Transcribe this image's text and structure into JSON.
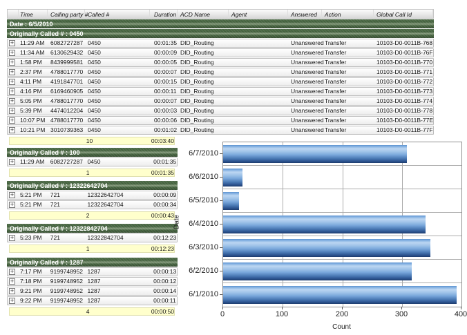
{
  "report": {
    "expander_glyph": "+",
    "date_band": "Date : 6/5/2010",
    "columns": [
      {
        "key": "expand",
        "label": ""
      },
      {
        "key": "time",
        "label": "Time"
      },
      {
        "key": "calling",
        "label": "Calling party #"
      },
      {
        "key": "called",
        "label": "Called #"
      },
      {
        "key": "duration",
        "label": "Duration"
      },
      {
        "key": "acd",
        "label": "ACD Name"
      },
      {
        "key": "agent",
        "label": "Agent"
      },
      {
        "key": "answered",
        "label": "Answered"
      },
      {
        "key": "action",
        "label": "Action"
      },
      {
        "key": "global",
        "label": "Global Call Id"
      }
    ],
    "groups": [
      {
        "band": "Originally Called # : 0450",
        "rows": [
          [
            "11:29 AM",
            "6082727287",
            "0450",
            "00:01:35",
            "DID_Routing",
            "",
            "Unanswered",
            "Transfer",
            "10103-D0-0011B-768"
          ],
          [
            "11:34 AM",
            "6130629432",
            "0450",
            "00:00:09",
            "DID_Routing",
            "",
            "Unanswered",
            "Transfer",
            "10103-D0-0011B-76F"
          ],
          [
            "1:58 PM",
            "8439999581",
            "0450",
            "00:00:05",
            "DID_Routing",
            "",
            "Unanswered",
            "Transfer",
            "10103-D0-0011B-770"
          ],
          [
            "2:37 PM",
            "4788017770",
            "0450",
            "00:00:07",
            "DID_Routing",
            "",
            "Unanswered",
            "Transfer",
            "10103-D0-0011B-771"
          ],
          [
            "4:11 PM",
            "4191847701",
            "0450",
            "00:00:15",
            "DID_Routing",
            "",
            "Unanswered",
            "Transfer",
            "10103-D0-0011B-772"
          ],
          [
            "4:16 PM",
            "6169460905",
            "0450",
            "00:00:11",
            "DID_Routing",
            "",
            "Unanswered",
            "Transfer",
            "10103-D0-0011B-773"
          ],
          [
            "5:05 PM",
            "4788017770",
            "0450",
            "00:00:07",
            "DID_Routing",
            "",
            "Unanswered",
            "Transfer",
            "10103-D0-0011B-774"
          ],
          [
            "5:39 PM",
            "4474012204",
            "0450",
            "00:00:03",
            "DID_Routing",
            "",
            "Unanswered",
            "Transfer",
            "10103-D0-0011B-778"
          ],
          [
            "10:07 PM",
            "4788017770",
            "0450",
            "00:00:06",
            "DID_Routing",
            "",
            "Unanswered",
            "Transfer",
            "10103-D0-0011B-77E"
          ],
          [
            "10:21 PM",
            "3010739363",
            "0450",
            "00:01:02",
            "DID_Routing",
            "",
            "Unanswered",
            "Transfer",
            "10103-D0-0011B-77F"
          ]
        ],
        "summary": {
          "count": "10",
          "duration": "00:03:40"
        }
      },
      {
        "band": "Originally Called # : 100",
        "rows": [
          [
            "11:29 AM",
            "6082727287",
            "0450",
            "00:01:35"
          ]
        ],
        "summary": {
          "count": "1",
          "duration": "00:01:35"
        }
      },
      {
        "band": "Originally Called # : 12322642704",
        "rows": [
          [
            "5:21 PM",
            "721",
            "12322642704",
            "00:00:09"
          ],
          [
            "5:21 PM",
            "721",
            "12322642704",
            "00:00:34"
          ]
        ],
        "summary": {
          "count": "2",
          "duration": "00:00:43"
        }
      },
      {
        "band": "Originally Called # : 12322842704",
        "rows": [
          [
            "5:23 PM",
            "721",
            "12322842704",
            "00:12:23"
          ]
        ],
        "summary": {
          "count": "1",
          "duration": "00:12:23"
        }
      },
      {
        "band": "Originally Called # : 1287",
        "rows": [
          [
            "7:17 PM",
            "9199748952",
            "1287",
            "00:00:13"
          ],
          [
            "7:18 PM",
            "9199748952",
            "1287",
            "00:00:12"
          ],
          [
            "9:21 PM",
            "9199748952",
            "1287",
            "00:00:14"
          ],
          [
            "9:22 PM",
            "9199748952",
            "1287",
            "00:00:11"
          ]
        ],
        "summary": {
          "count": "4",
          "duration": "00:00:50"
        }
      }
    ]
  },
  "chart_data": {
    "type": "bar",
    "orientation": "horizontal",
    "categories": [
      "6/7/2010",
      "6/6/2010",
      "6/5/2010",
      "6/4/2010",
      "6/3/2010",
      "6/2/2010",
      "6/1/2010"
    ],
    "values": [
      308,
      33,
      27,
      340,
      348,
      317,
      392
    ],
    "title": "",
    "xlabel": "Count",
    "ylabel": "Date",
    "xlim": [
      0,
      400
    ],
    "xticks": [
      0,
      100,
      200,
      300,
      400
    ],
    "grid": true,
    "legend": "none",
    "bar_color": "#5b8fd0"
  },
  "colors": {
    "group_band_green": "#4a6647",
    "summary_yellow": "#ffffcc",
    "bar_blue": "#5b8fd0",
    "grid_gray": "#ababab"
  }
}
